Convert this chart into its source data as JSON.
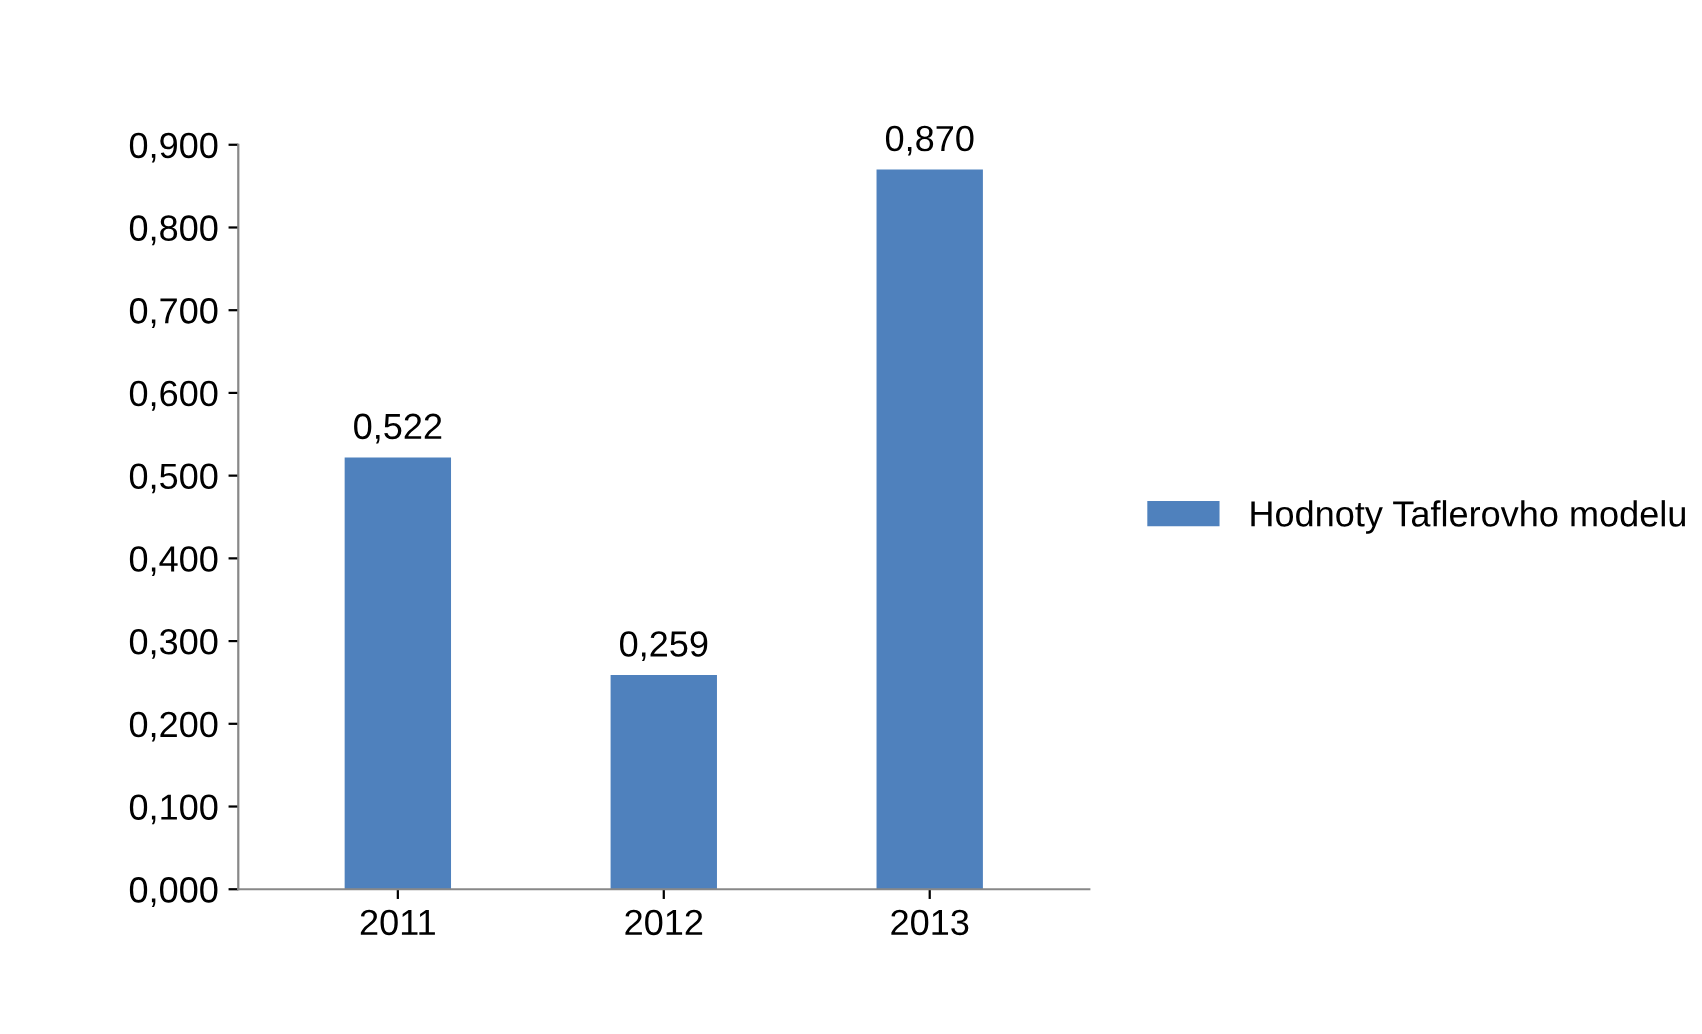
{
  "chart_data": {
    "type": "bar",
    "categories": [
      "2011",
      "2012",
      "2013"
    ],
    "series": [
      {
        "name": "Hodnoty Taflerovho modelu",
        "color": "#4f81bd",
        "values": [
          0.522,
          0.259,
          0.87
        ],
        "value_labels": [
          "0,522",
          "0,259",
          "0,870"
        ]
      }
    ],
    "ylim": [
      0,
      0.9
    ],
    "yticks": [
      {
        "value": 0,
        "label": "0,000"
      },
      {
        "value": 0.1,
        "label": "0,100"
      },
      {
        "value": 0.2,
        "label": "0,200"
      },
      {
        "value": 0.3,
        "label": "0,300"
      },
      {
        "value": 0.4,
        "label": "0,400"
      },
      {
        "value": 0.5,
        "label": "0,500"
      },
      {
        "value": 0.6,
        "label": "0,600"
      },
      {
        "value": 0.7,
        "label": "0,700"
      },
      {
        "value": 0.8,
        "label": "0,800"
      },
      {
        "value": 0.9,
        "label": "0,900"
      }
    ],
    "grid": false,
    "legend": "right"
  }
}
